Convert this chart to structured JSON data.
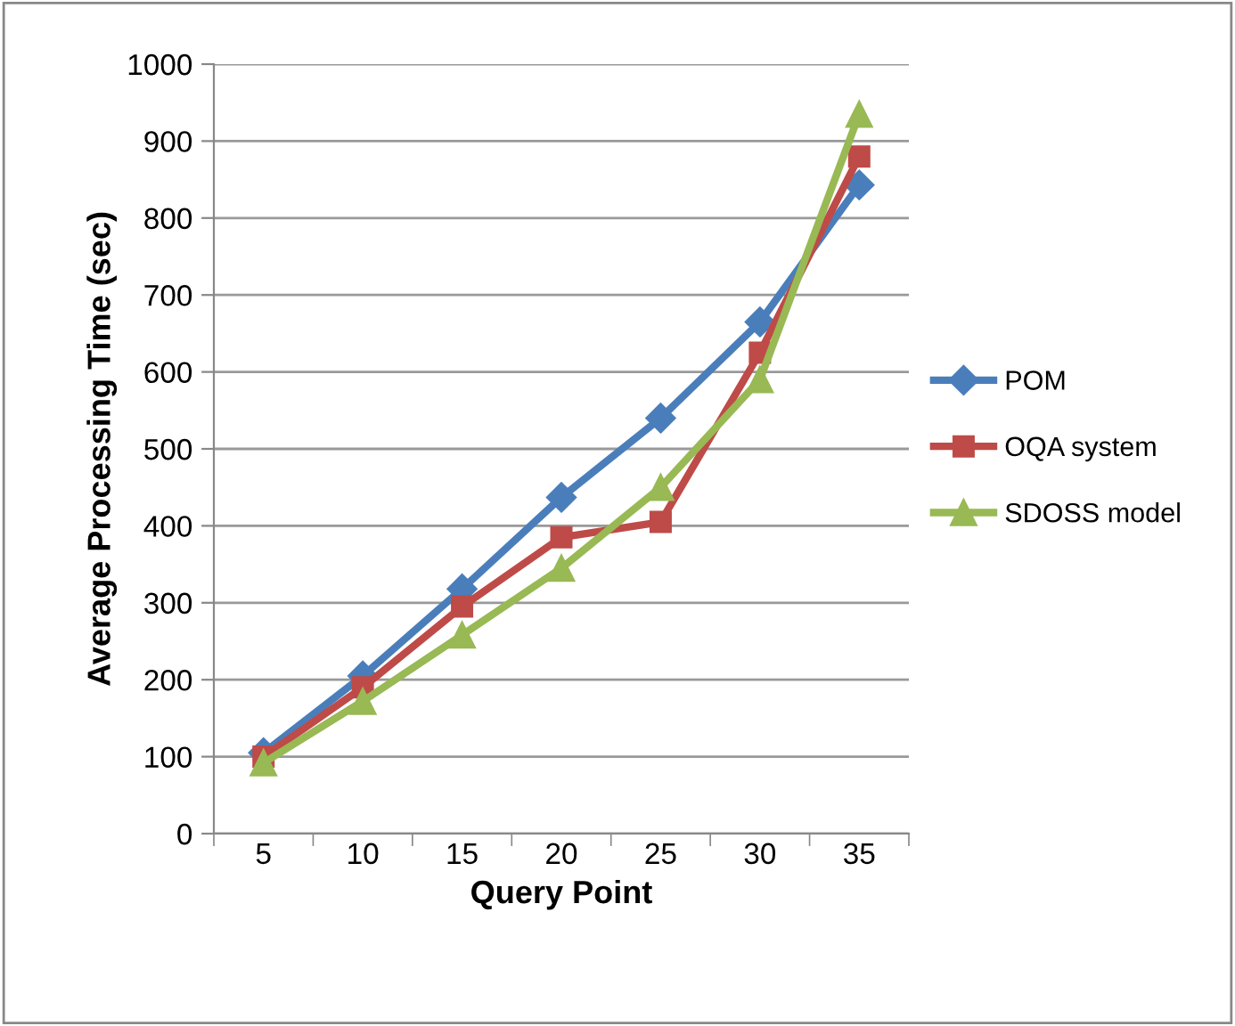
{
  "chart_data": {
    "type": "line",
    "xlabel": "Query Point",
    "ylabel": "Average Processing Time (sec)",
    "categories": [
      "5",
      "10",
      "15",
      "20",
      "25",
      "30",
      "35"
    ],
    "ylim": [
      0,
      1000
    ],
    "yticks": [
      0,
      100,
      200,
      300,
      400,
      500,
      600,
      700,
      800,
      900,
      1000
    ],
    "grid": "y",
    "legend": "right",
    "line_style": "solid",
    "series": [
      {
        "name": "POM",
        "color": "#4a7ebb",
        "marker": "diamond",
        "values": [
          105,
          205,
          318,
          437,
          540,
          665,
          843
        ]
      },
      {
        "name": "OQA system",
        "color": "#be4b48",
        "marker": "square",
        "values": [
          100,
          190,
          295,
          385,
          405,
          625,
          880
        ]
      },
      {
        "name": "SDOSS model",
        "color": "#98b954",
        "marker": "triangle",
        "values": [
          92,
          172,
          258,
          345,
          450,
          590,
          935
        ]
      }
    ]
  }
}
